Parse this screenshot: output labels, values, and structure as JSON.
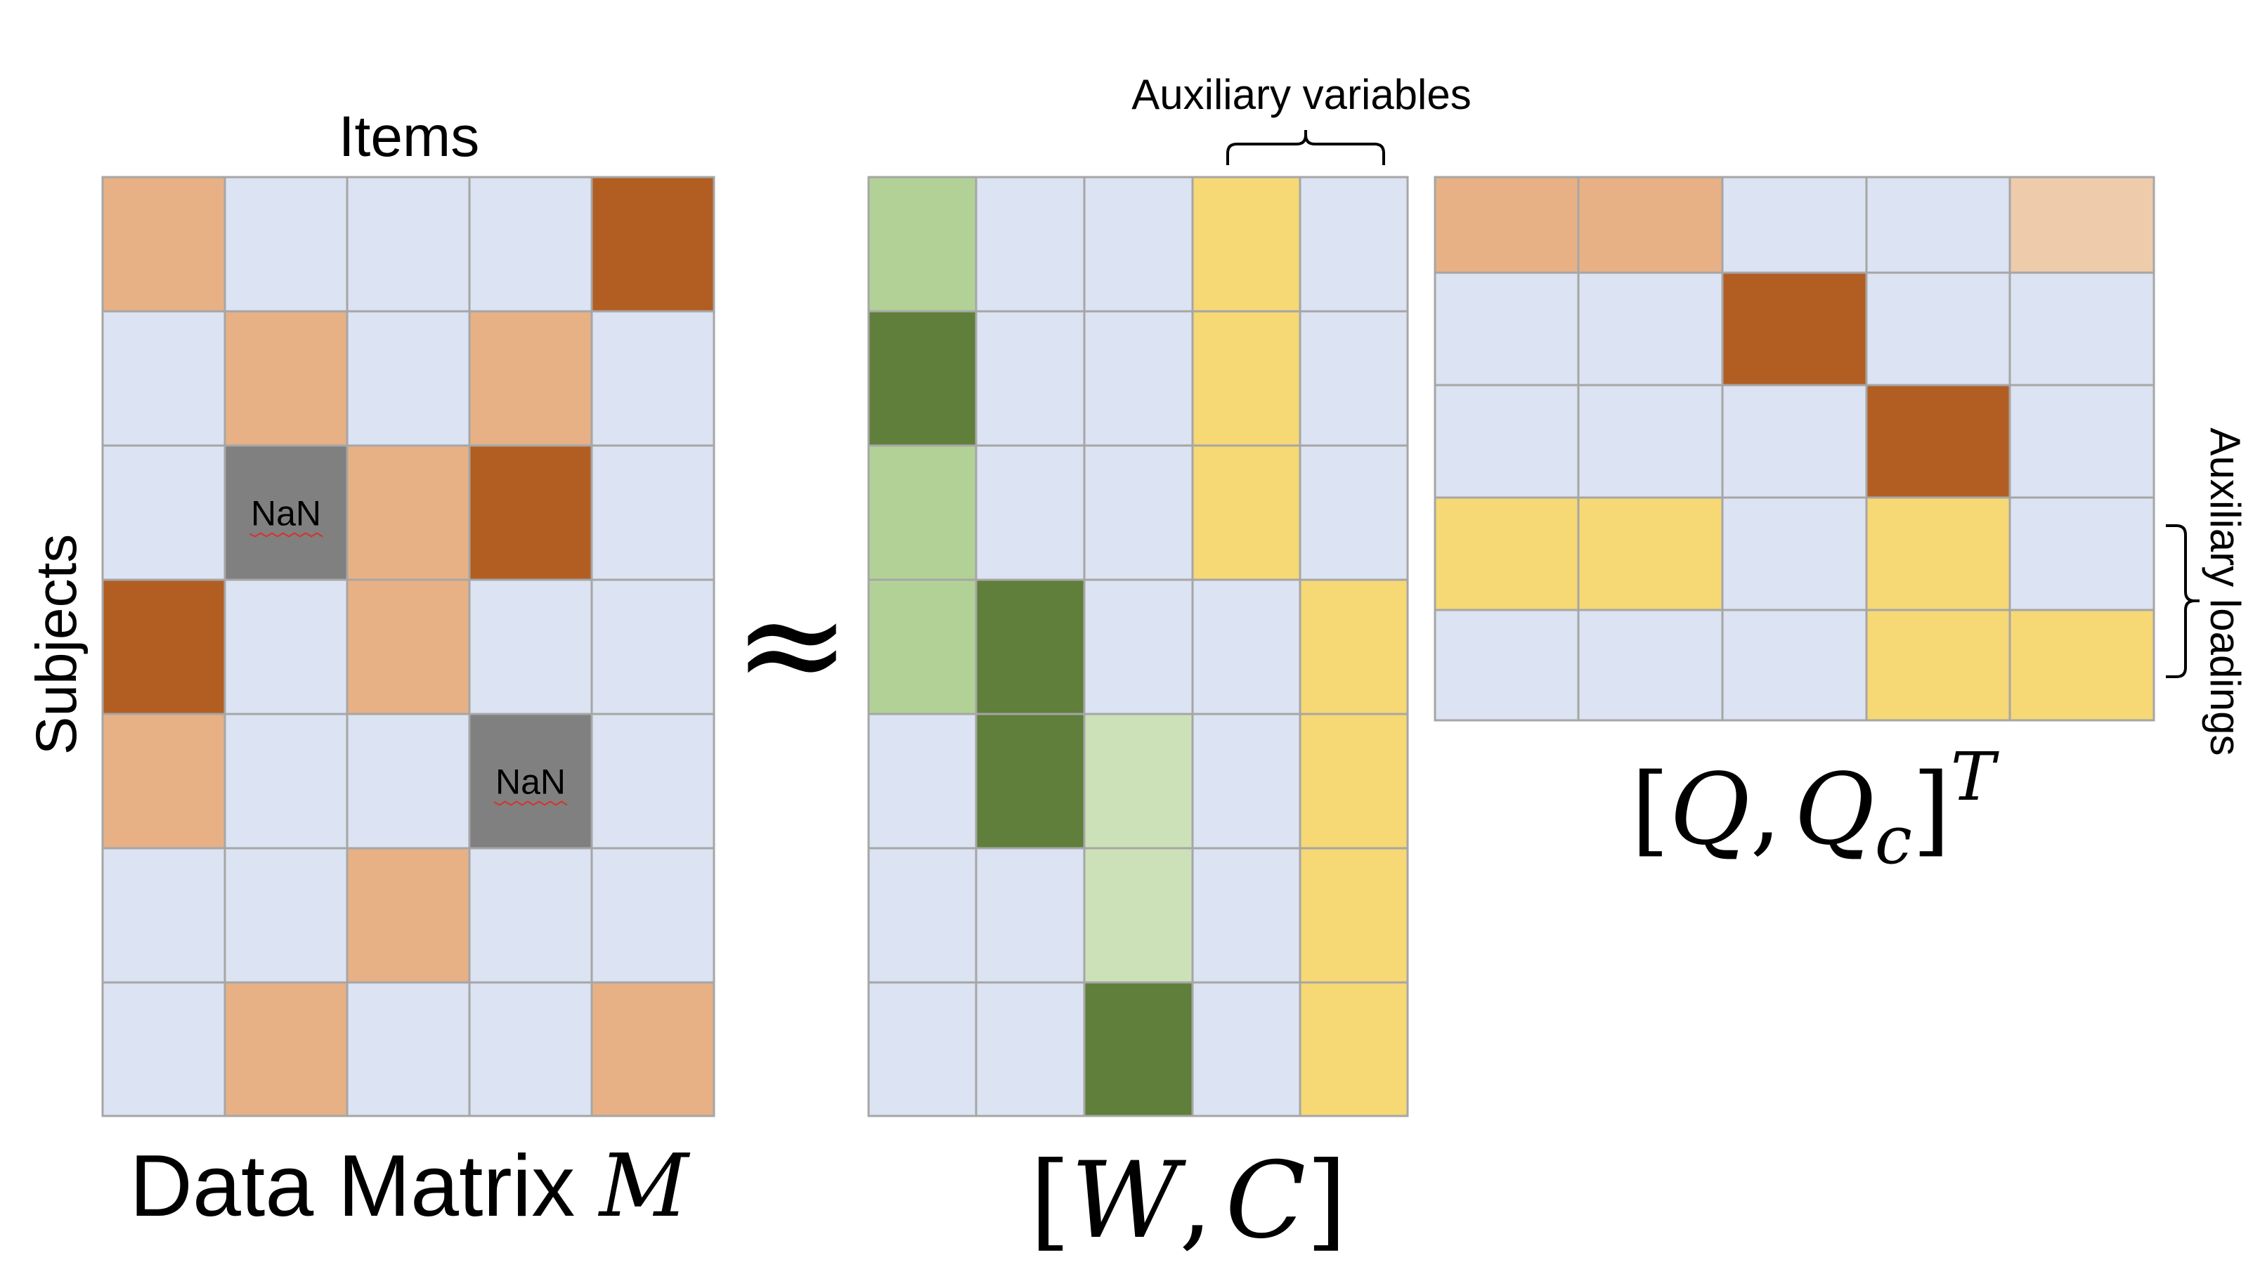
{
  "labels": {
    "items": "Items",
    "subjects": "Subjects",
    "data_matrix_text": "Data Matrix ",
    "data_matrix_symbol": "M",
    "approx": "≈",
    "aux_variables": "Auxiliary variables",
    "aux_loadings": "Auxiliary loadings",
    "wc": {
      "open": "[",
      "W": "W",
      "comma": ",",
      "C": "C",
      "close": "]"
    },
    "qq": {
      "open": "[",
      "Q": "Q",
      "comma": ",",
      "Qc": "Q",
      "sub": "c",
      "close": "]",
      "sup": "T"
    }
  },
  "nan_label": "NaN",
  "colors": {
    "L": "#dce3f2",
    "O": "#e7b185",
    "D": "#b25e23",
    "F": "#eecbab",
    "N": "#808080",
    "g": "#b2d196",
    "G": "#5f7f3b",
    "p": "#cde1b9",
    "Y": "#f6d875",
    "grid": "#a6a6a6"
  },
  "matrices": {
    "M": {
      "rows": [
        [
          "O",
          "L",
          "L",
          "L",
          "D"
        ],
        [
          "L",
          "O",
          "L",
          "O",
          "L"
        ],
        [
          "L",
          "N",
          "O",
          "D",
          "L"
        ],
        [
          "D",
          "L",
          "O",
          "L",
          "L"
        ],
        [
          "O",
          "L",
          "L",
          "N",
          "L"
        ],
        [
          "L",
          "L",
          "O",
          "L",
          "L"
        ],
        [
          "L",
          "O",
          "L",
          "L",
          "O"
        ]
      ]
    },
    "WC": {
      "rows": [
        [
          "g",
          "L",
          "L",
          "Y",
          "L"
        ],
        [
          "G",
          "L",
          "L",
          "Y",
          "L"
        ],
        [
          "g",
          "L",
          "L",
          "Y",
          "L"
        ],
        [
          "g",
          "G",
          "L",
          "L",
          "Y"
        ],
        [
          "L",
          "G",
          "p",
          "L",
          "Y"
        ],
        [
          "L",
          "L",
          "p",
          "L",
          "Y"
        ],
        [
          "L",
          "L",
          "G",
          "L",
          "Y"
        ]
      ]
    },
    "QQ": {
      "rows": [
        [
          "O",
          "O",
          "L",
          "L",
          "F"
        ],
        [
          "L",
          "L",
          "D",
          "L",
          "L"
        ],
        [
          "L",
          "L",
          "L",
          "D",
          "L"
        ],
        [
          "Y",
          "Y",
          "L",
          "Y",
          "L"
        ],
        [
          "L",
          "L",
          "L",
          "Y",
          "Y"
        ]
      ]
    }
  }
}
